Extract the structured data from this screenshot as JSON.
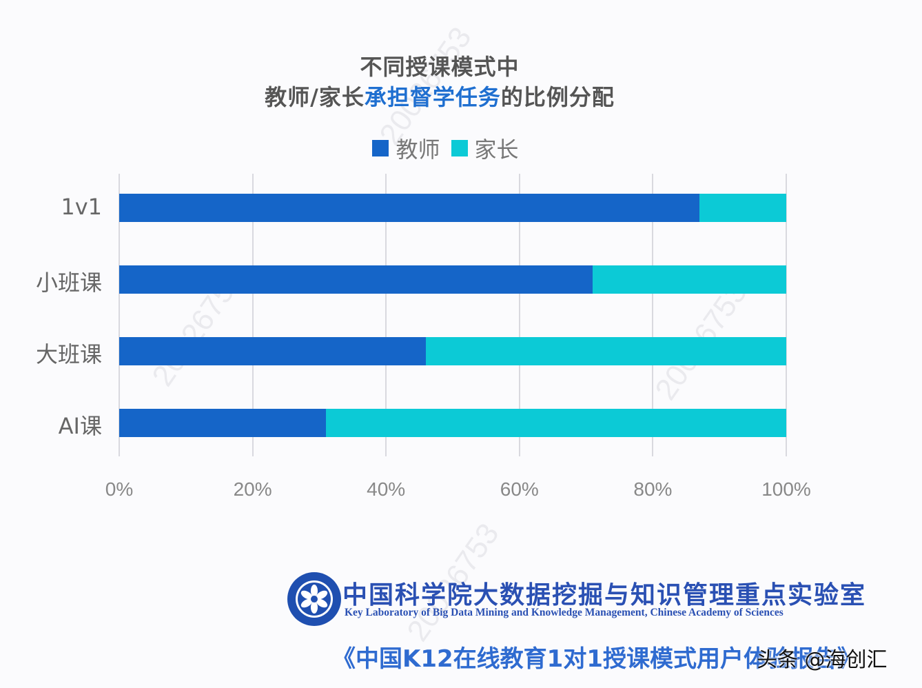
{
  "title": {
    "line1": "不同授课模式中",
    "line2_prefix": "教师/家长",
    "line2_highlight": "承担督学任务",
    "line2_suffix": "的比例分配"
  },
  "legend": [
    {
      "label": "教师",
      "color": "#1565c8"
    },
    {
      "label": "家长",
      "color": "#0ccad6"
    }
  ],
  "chart_data": {
    "type": "bar",
    "orientation": "horizontal",
    "stacked": true,
    "title": "不同授课模式中 教师/家长承担督学任务的比例分配",
    "categories": [
      "1v1",
      "小班课",
      "大班课",
      "AI课"
    ],
    "series": [
      {
        "name": "教师",
        "color": "#1565c8",
        "values": [
          87,
          71,
          46,
          31
        ]
      },
      {
        "name": "家长",
        "color": "#0ccad6",
        "values": [
          13,
          29,
          54,
          69
        ]
      }
    ],
    "xlabel": "",
    "ylabel": "",
    "xlim": [
      0,
      100
    ],
    "x_ticks": [
      "0%",
      "20%",
      "40%",
      "60%",
      "80%",
      "100%"
    ],
    "grid": true,
    "legend_position": "top"
  },
  "footer": {
    "org_cn": "中国科学院大数据挖掘与知识管理重点实验室",
    "org_en": "Key Laboratory of Big Data Mining and Knowledge Management, Chinese Academy of Sciences",
    "report": "《中国K12在线教育1对1授课模式用户体验报告》",
    "source_watermark": "头条 @海创汇"
  },
  "watermark": "20026753"
}
